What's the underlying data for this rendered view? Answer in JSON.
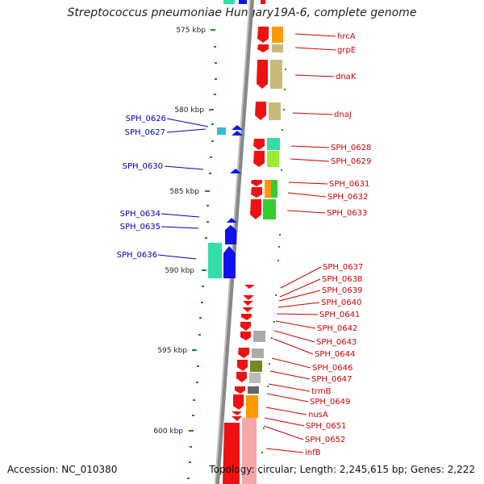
{
  "title": "Streptococcus pneumoniae Hungary19A-6, complete genome",
  "footer": {
    "accession": "Accession: NC_010380",
    "info": "Topology: circular; Length: 2,245,615 bp; Genes: 2,222"
  },
  "colors": {
    "backbone": "#888888",
    "forward_gene": "#ee1111",
    "reverse_gene": "#1111ee",
    "ruler_tick": "#1a8a1a",
    "left_label": "#0000bb",
    "right_label": "#cc0000",
    "orange": "#ff9900",
    "khaki": "#c8bb7a",
    "green": "#33cc33",
    "light_green": "#99ee33",
    "teal": "#33ddaa",
    "cyan": "#33bbdd",
    "gray": "#aaaaaa",
    "olive": "#778822",
    "dark_gray": "#666666",
    "pink": "#f4a7a7"
  },
  "ruler": [
    "575 kbp",
    "580 kbp",
    "585 kbp",
    "590 kbp",
    "595 kbp",
    "600 kbp"
  ],
  "left_labels": [
    "SPH_0626",
    "SPH_0627",
    "SPH_0630",
    "SPH_0634",
    "SPH_0635",
    "SPH_0636"
  ],
  "right_labels": [
    "hrcA",
    "grpE",
    "dnaK",
    "dnaJ",
    "SPH_0628",
    "SPH_0629",
    "SPH_0631",
    "SPH_0632",
    "SPH_0633",
    "SPH_0637",
    "SPH_0638",
    "SPH_0639",
    "SPH_0640",
    "SPH_0641",
    "SPH_0642",
    "SPH_0643",
    "SPH_0644",
    "SPH_0646",
    "SPH_0647",
    "trmB",
    "SPH_0649",
    "nusA",
    "SPH_0651",
    "SPH_0652",
    "infB"
  ]
}
